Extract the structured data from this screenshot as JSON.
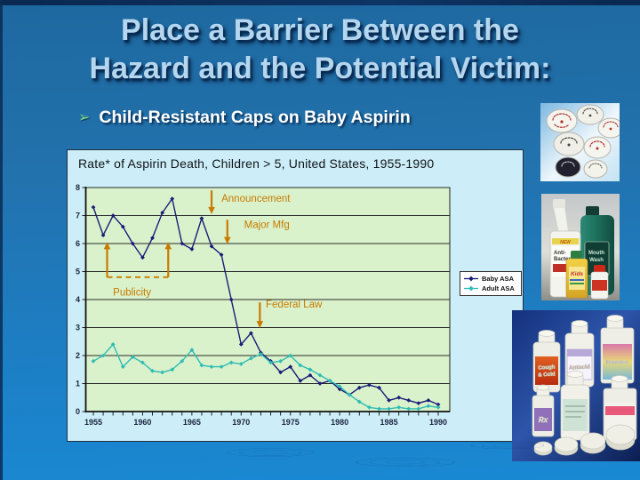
{
  "slide": {
    "title_line1": "Place a Barrier Between the",
    "title_line2": "Hazard and the Potential Victim:",
    "bullet_text": "Child-Resistant Caps on Baby Aspirin",
    "colors": {
      "background_top": "#2071a9",
      "background_bottom": "#1b87d0",
      "title_text": "#b5d6ef",
      "bullet_arrow_green": "#7edc8c",
      "edge_navy": "#0b2b55"
    }
  },
  "chart_data": {
    "type": "line",
    "title": "Rate* of Aspirin Death, Children > 5, United States, 1955-1990",
    "x": [
      1955,
      1956,
      1957,
      1958,
      1959,
      1960,
      1961,
      1962,
      1963,
      1964,
      1965,
      1966,
      1967,
      1968,
      1969,
      1970,
      1971,
      1972,
      1973,
      1974,
      1975,
      1976,
      1977,
      1978,
      1979,
      1980,
      1981,
      1982,
      1983,
      1984,
      1985,
      1986,
      1987,
      1988,
      1989,
      1990
    ],
    "series": [
      {
        "name": "Baby ASA",
        "color": "#1b1b78",
        "marker": "diamond",
        "values": [
          7.3,
          6.3,
          7.0,
          6.6,
          6.0,
          5.5,
          6.2,
          7.1,
          7.6,
          6.0,
          5.8,
          6.9,
          5.9,
          5.6,
          4.0,
          2.4,
          2.8,
          2.1,
          1.8,
          1.4,
          1.6,
          1.1,
          1.3,
          1.0,
          1.1,
          0.8,
          0.6,
          0.85,
          0.95,
          0.85,
          0.4,
          0.5,
          0.4,
          0.3,
          0.4,
          0.25
        ]
      },
      {
        "name": "Adult ASA",
        "color": "#2fbcb4",
        "marker": "diamond",
        "values": [
          1.8,
          2.0,
          2.4,
          1.6,
          1.95,
          1.75,
          1.45,
          1.4,
          1.5,
          1.8,
          2.2,
          1.65,
          1.6,
          1.6,
          1.75,
          1.7,
          1.9,
          2.05,
          1.75,
          1.8,
          2.0,
          1.65,
          1.5,
          1.3,
          1.1,
          0.9,
          0.6,
          0.35,
          0.15,
          0.1,
          0.1,
          0.15,
          0.1,
          0.1,
          0.2,
          0.15
        ]
      }
    ],
    "xlabel": "",
    "ylabel": "",
    "ylim": [
      0,
      8
    ],
    "xticks": [
      1955,
      1960,
      1965,
      1970,
      1975,
      1980,
      1985,
      1990
    ],
    "yticks": [
      0,
      1,
      2,
      3,
      4,
      5,
      6,
      7,
      8
    ],
    "grid": true,
    "legend_position": "right-outside",
    "plot_bg": "#d9f2cb",
    "frame_bg": "#cdeef8",
    "annotation_color": "#c87a00",
    "annotations": [
      {
        "text": "Publicity",
        "type": "up-arrows-dashed",
        "years": [
          1956.4,
          1962.6
        ],
        "arrow_bottom": 4.8,
        "arrow_top": 6.05,
        "label_year": 1957.0,
        "label_value": 4.15
      },
      {
        "text": "Announcement",
        "type": "down-arrow",
        "year": 1967.0,
        "from": 7.9,
        "to": 7.05,
        "label_year": 1968.0,
        "label_value": 7.5
      },
      {
        "text": "Major Mfg",
        "type": "down-arrow",
        "year": 1968.6,
        "from": 6.85,
        "to": 5.98,
        "label_year": 1970.3,
        "label_value": 6.55
      },
      {
        "text": "Federal Law",
        "type": "down-arrow",
        "year": 1971.9,
        "from": 3.9,
        "to": 2.98,
        "label_year": 1972.5,
        "label_value": 3.72
      }
    ]
  },
  "photos": {
    "caps": {
      "alt": "child-resistant bottle caps"
    },
    "products": {
      "alt": "household products with safety caps",
      "new_badge": "NEW",
      "cleaner_line1": "Anti-",
      "cleaner_line2": "Bacterial",
      "mouthwash_line1": "Mouth",
      "mouthwash_line2": "Wash",
      "vitamins_label": "Kids"
    },
    "pills": {
      "alt": "medicine bottles with child-resistant caps",
      "cough_line1": "Cough",
      "cough_line2": "& Cold",
      "antacid_label": "Antacid",
      "ibuprofen_label": "Ibuprofen",
      "rx_label": "Rx"
    }
  }
}
